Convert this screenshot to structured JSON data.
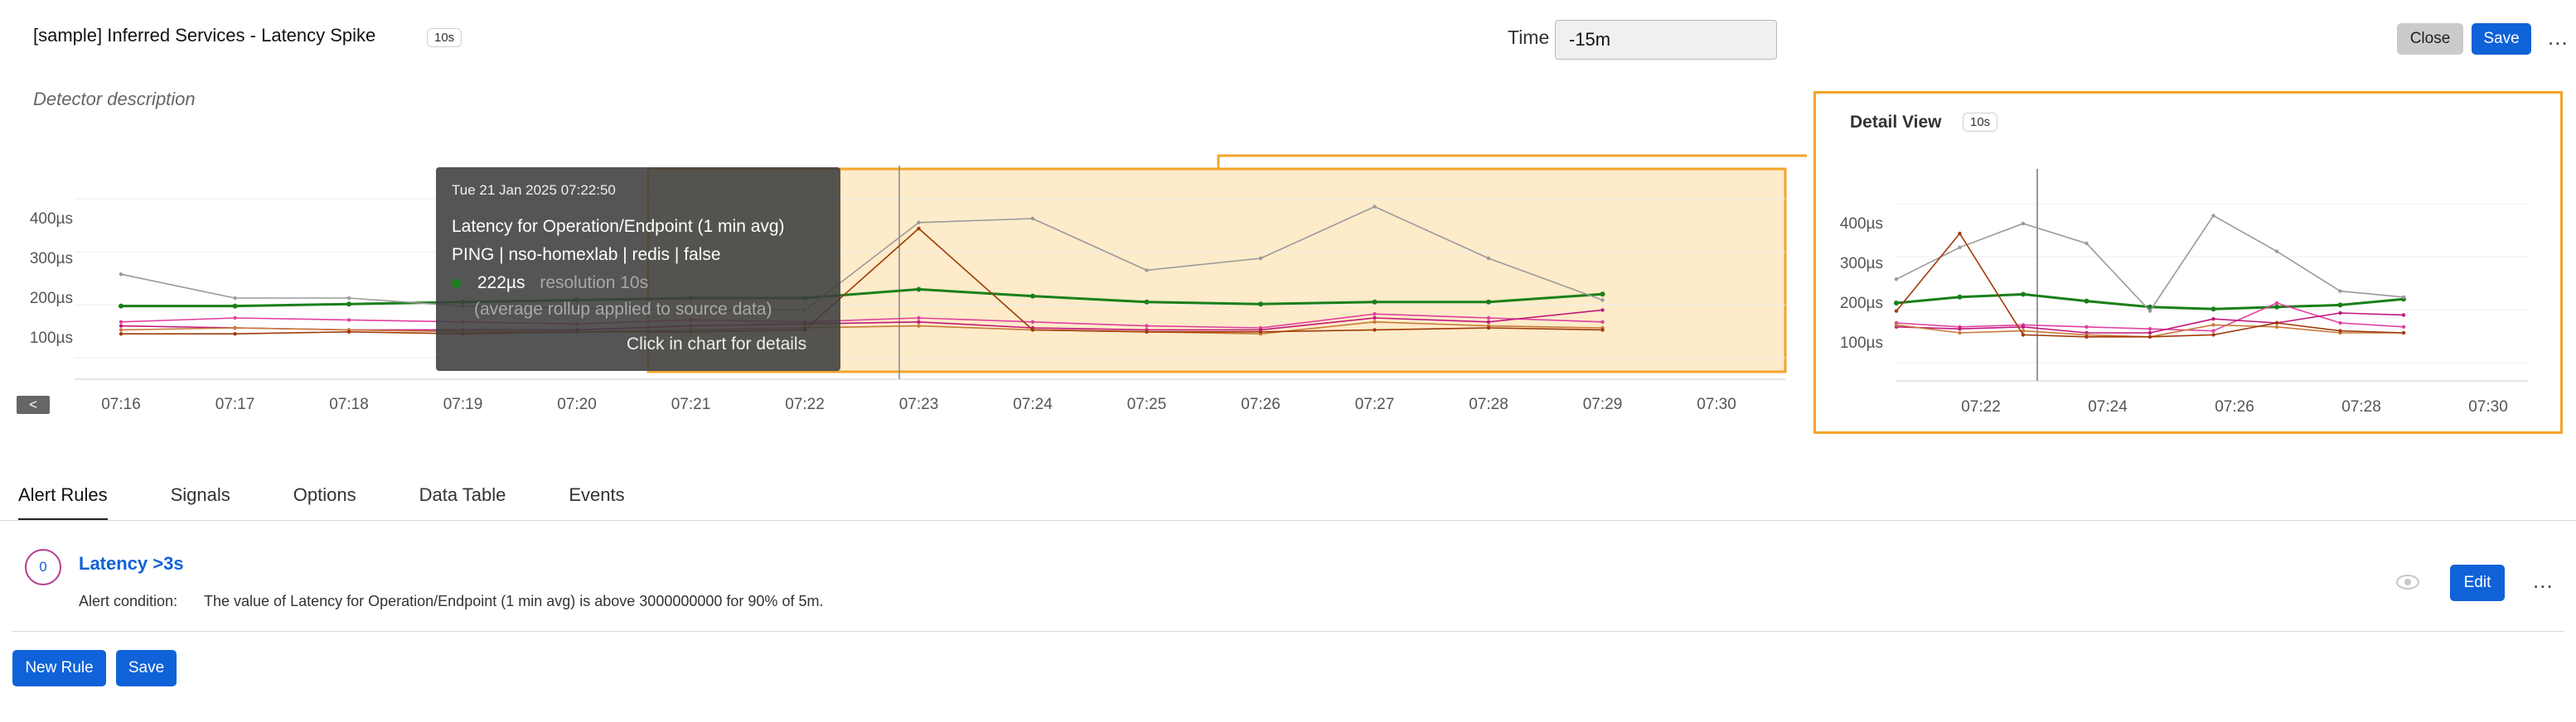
{
  "header": {
    "title": "[sample] Inferred Services - Latency Spike",
    "resolution_badge": "10s",
    "time_label": "Time",
    "time_value": "-15m",
    "close_label": "Close",
    "save_label": "Save",
    "more_label": "..."
  },
  "detector_description_placeholder": "Detector description",
  "main_chart": {
    "y_ticks": [
      "400µs",
      "300µs",
      "200µs",
      "100µs"
    ],
    "x_ticks": [
      "07:16",
      "07:17",
      "07:18",
      "07:19",
      "07:20",
      "07:21",
      "07:22",
      "07:23",
      "07:24",
      "07:25",
      "07:26",
      "07:27",
      "07:28",
      "07:29",
      "07:30"
    ],
    "collapse_label": "<"
  },
  "tooltip": {
    "timestamp": "Tue 21 Jan 2025 07:22:50",
    "metric": "Latency for Operation/Endpoint (1 min avg)",
    "dimensions": "PING | nso-homexlab | redis | false",
    "value": "222µs",
    "resolution": "resolution 10s",
    "rollup_note": "(average rollup applied to source data)",
    "hint": "Click in chart for details"
  },
  "detail_view": {
    "title": "Detail View",
    "badge": "10s",
    "y_ticks": [
      "400µs",
      "300µs",
      "200µs",
      "100µs"
    ],
    "x_ticks": [
      "07:22",
      "07:24",
      "07:26",
      "07:28",
      "07:30"
    ]
  },
  "tabs": [
    "Alert Rules",
    "Signals",
    "Options",
    "Data Table",
    "Events"
  ],
  "alert_rule": {
    "count": "0",
    "name": "Latency >3s",
    "condition_label": "Alert condition:",
    "condition_text": "The value of Latency for Operation/Endpoint (1 min avg) is above 3000000000 for 90% of 5m.",
    "edit_label": "Edit",
    "more_label": "..."
  },
  "footer": {
    "new_rule_label": "New Rule",
    "save_label": "Save"
  },
  "colors": {
    "accent": "#0f62d8",
    "highlight_border": "#f3a42a",
    "highlight_fill": "#fdebc9",
    "series_green": "#1a7f1a",
    "series_gray": "#9a9a9a",
    "series_pink": "#e040a0",
    "series_magenta": "#c2187a",
    "series_orange": "#c77a3a",
    "series_brown": "#a03a0a"
  },
  "chart_data": [
    {
      "type": "line",
      "title": "",
      "xlabel": "",
      "ylabel": "",
      "x": [
        "07:16",
        "07:17",
        "07:18",
        "07:19",
        "07:20",
        "07:21",
        "07:22",
        "07:23",
        "07:24",
        "07:25",
        "07:26",
        "07:27",
        "07:28",
        "07:29"
      ],
      "ylim": [
        50,
        450
      ],
      "series": [
        {
          "color": "#1a7f1a",
          "values": [
            180,
            180,
            185,
            190,
            195,
            200,
            200,
            222,
            205,
            190,
            185,
            190,
            190,
            210
          ]
        },
        {
          "color": "#9a9a9a",
          "values": [
            260,
            200,
            200,
            180,
            175,
            170,
            170,
            390,
            400,
            270,
            300,
            430,
            300,
            195
          ]
        },
        {
          "color": "#e040a0",
          "values": [
            140,
            150,
            145,
            140,
            135,
            145,
            140,
            150,
            140,
            130,
            125,
            160,
            150,
            140
          ]
        },
        {
          "color": "#c2187a",
          "values": [
            130,
            125,
            120,
            120,
            120,
            130,
            135,
            140,
            125,
            120,
            120,
            150,
            140,
            170
          ]
        },
        {
          "color": "#c77a3a",
          "values": [
            120,
            125,
            120,
            115,
            115,
            120,
            125,
            130,
            120,
            115,
            110,
            140,
            130,
            125
          ]
        },
        {
          "color": "#a03a0a",
          "values": [
            110,
            110,
            115,
            110,
            115,
            115,
            120,
            375,
            120,
            115,
            115,
            120,
            125,
            120
          ]
        }
      ]
    },
    {
      "type": "line",
      "title": "Detail View",
      "xlabel": "",
      "ylabel": "",
      "x": [
        "07:21",
        "07:22",
        "07:23",
        "07:24",
        "07:25",
        "07:26",
        "07:27",
        "07:28",
        "07:29"
      ],
      "ylim": [
        50,
        450
      ],
      "series": [
        {
          "color": "#1a7f1a",
          "values": [
            200,
            215,
            222,
            205,
            190,
            185,
            190,
            195,
            210
          ]
        },
        {
          "color": "#9a9a9a",
          "values": [
            260,
            340,
            400,
            350,
            180,
            420,
            330,
            230,
            215
          ]
        },
        {
          "color": "#e040a0",
          "values": [
            150,
            140,
            145,
            140,
            135,
            130,
            200,
            150,
            140
          ]
        },
        {
          "color": "#c2187a",
          "values": [
            140,
            135,
            140,
            125,
            125,
            160,
            150,
            175,
            170
          ]
        },
        {
          "color": "#c77a3a",
          "values": [
            145,
            125,
            130,
            120,
            115,
            145,
            140,
            125,
            125
          ]
        },
        {
          "color": "#a03a0a",
          "values": [
            180,
            375,
            120,
            115,
            115,
            120,
            150,
            130,
            125
          ]
        }
      ]
    }
  ]
}
